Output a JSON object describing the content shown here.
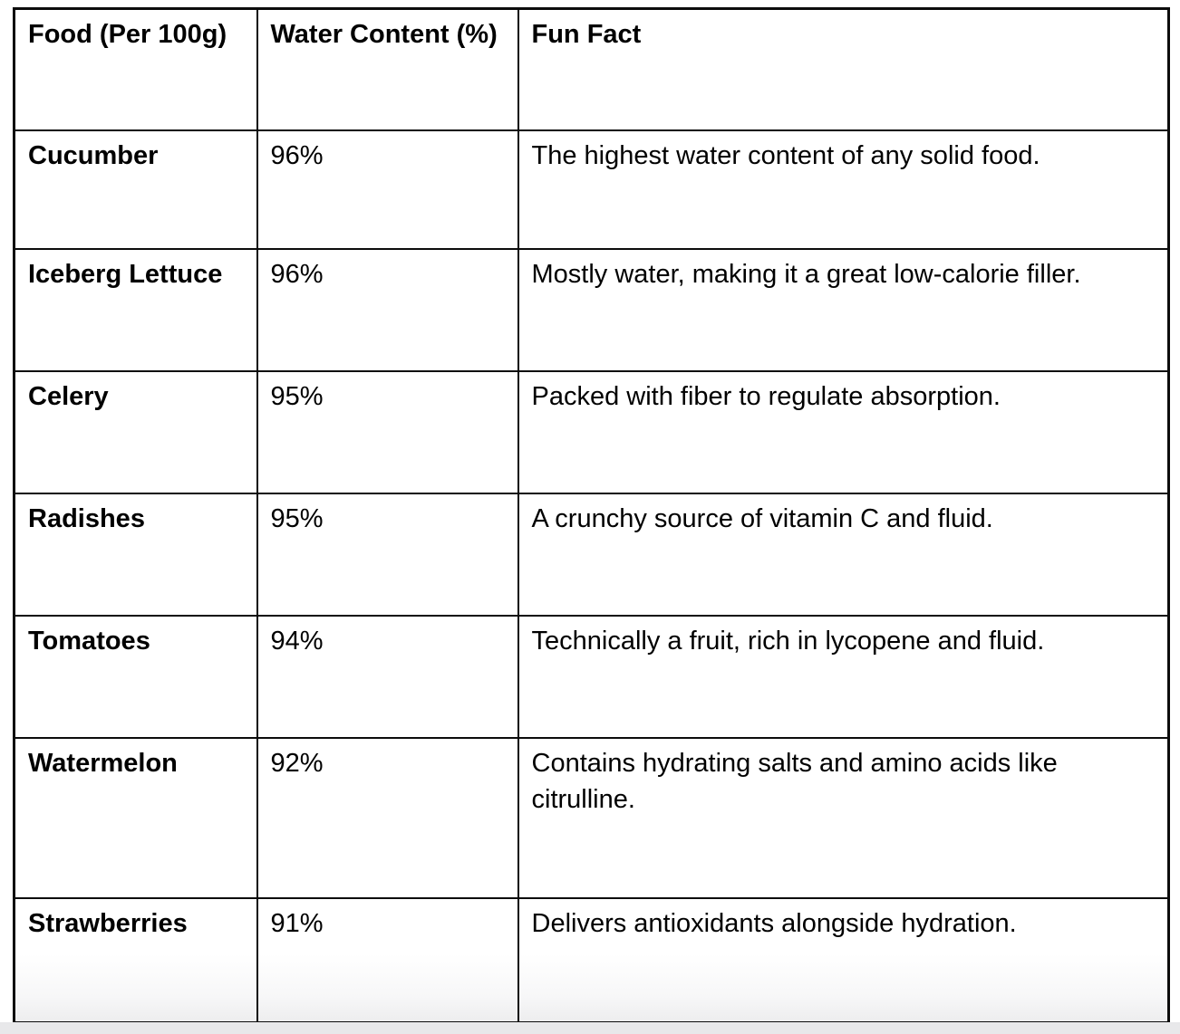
{
  "table": {
    "columns": [
      {
        "label": "Food (Per 100g)"
      },
      {
        "label": "Water Content (%)"
      },
      {
        "label": "Fun Fact"
      }
    ],
    "rows": [
      {
        "food": "Cucumber",
        "water": "96%",
        "fact": "The highest water content of any solid food."
      },
      {
        "food": "Iceberg Lettuce",
        "water": "96%",
        "fact": "Mostly water, making it a great low-calorie filler."
      },
      {
        "food": "Celery",
        "water": "95%",
        "fact": "Packed with fiber to regulate absorption."
      },
      {
        "food": "Radishes",
        "water": "95%",
        "fact": "A crunchy source of vitamin C and fluid."
      },
      {
        "food": "Tomatoes",
        "water": "94%",
        "fact": "Technically a fruit, rich in lycopene and fluid."
      },
      {
        "food": "Watermelon",
        "water": "92%",
        "fact": "Contains hydrating salts and amino acids like citrulline."
      },
      {
        "food": "Strawberries",
        "water": "91%",
        "fact": "Delivers antioxidants alongside hydration."
      }
    ]
  },
  "colors": {
    "page_background": "#ffffff",
    "table_border": "#0c0c0c",
    "text": "#000000",
    "bottom_strip": "#e8e8ea"
  }
}
